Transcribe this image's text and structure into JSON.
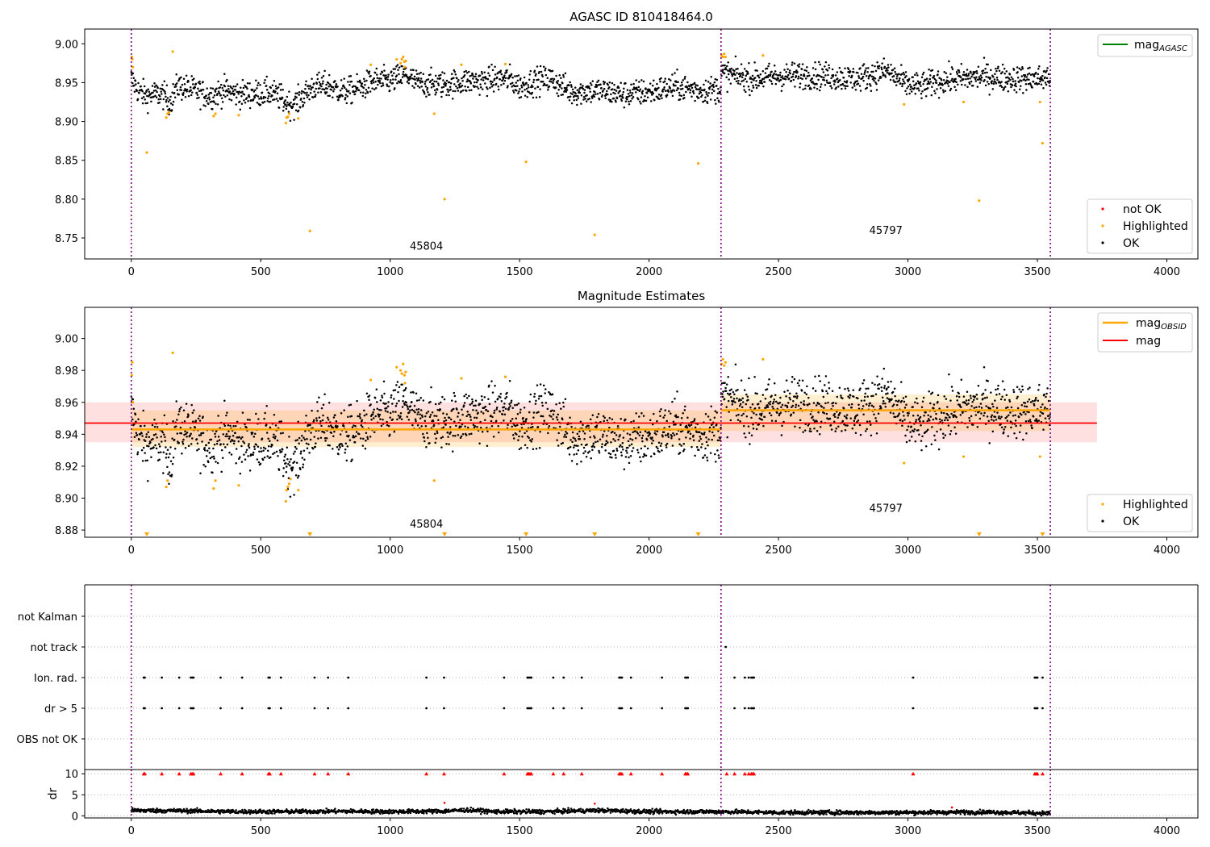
{
  "colors": {
    "ok": "#000000",
    "highlighted": "#ffa500",
    "not_ok": "#ff0000",
    "mag_agasc": "#008000",
    "mag_obsid": "#ffa500",
    "mag": "#ff0000",
    "obs_boundary": "#800080"
  },
  "chart_data": [
    {
      "type": "scatter",
      "title": "AGASC ID 810418464.0",
      "xlabel": "",
      "ylabel": "",
      "xlim": [
        -180,
        4120
      ],
      "ylim": [
        8.723,
        9.019
      ],
      "xticks": [
        0,
        500,
        1000,
        1500,
        2000,
        2500,
        3000,
        3500,
        4000
      ],
      "yticks": [
        8.75,
        8.8,
        8.85,
        8.9,
        8.95,
        9.0
      ],
      "ytick_labels": [
        "8.75",
        "8.80",
        "8.85",
        "8.90",
        "8.95",
        "9.00"
      ],
      "obs_boundaries": [
        0,
        2278,
        3550
      ],
      "obs_labels": [
        {
          "text": "45804",
          "x": 1140,
          "y": 8.735
        },
        {
          "text": "45797",
          "x": 2915,
          "y": 8.755
        }
      ],
      "legend_lines": [
        {
          "label": "mag",
          "sub": "AGASC",
          "color_key": "mag_agasc"
        }
      ],
      "legend_points": [
        {
          "label": "not OK",
          "color_key": "not_ok"
        },
        {
          "label": "Highlighted",
          "color_key": "highlighted"
        },
        {
          "label": "OK",
          "color_key": "ok"
        }
      ],
      "ok_trend": {
        "x": [
          0,
          30,
          60,
          90,
          120,
          150,
          180,
          220,
          260,
          300,
          360,
          420,
          480,
          540,
          580,
          600,
          620,
          640,
          660,
          700,
          760,
          820,
          880,
          940,
          1000,
          1060,
          1100,
          1160,
          1220,
          1300,
          1360,
          1420,
          1460,
          1500,
          1560,
          1620,
          1700,
          1800,
          1900,
          2000,
          2100,
          2200,
          2277,
          2278,
          2400,
          2500,
          2600,
          2700,
          2800,
          2860,
          2920,
          2960,
          2990,
          3050,
          3120,
          3200,
          3300,
          3400,
          3500,
          3550
        ],
        "y": [
          8.955,
          8.938,
          8.933,
          8.935,
          8.935,
          8.925,
          8.946,
          8.942,
          8.938,
          8.933,
          8.94,
          8.935,
          8.936,
          8.937,
          8.93,
          8.923,
          8.922,
          8.924,
          8.932,
          8.944,
          8.946,
          8.938,
          8.943,
          8.952,
          8.952,
          8.96,
          8.95,
          8.948,
          8.948,
          8.952,
          8.952,
          8.955,
          8.955,
          8.945,
          8.952,
          8.955,
          8.938,
          8.94,
          8.935,
          8.938,
          8.945,
          8.94,
          8.942,
          8.962,
          8.955,
          8.958,
          8.96,
          8.958,
          8.955,
          8.96,
          8.965,
          8.955,
          8.948,
          8.945,
          8.952,
          8.955,
          8.958,
          8.955,
          8.955,
          8.957
        ]
      },
      "highlighted": {
        "x": [
          2,
          4,
          6,
          60,
          135,
          140,
          145,
          160,
          318,
          325,
          415,
          597,
          600,
          605,
          610,
          645,
          690,
          925,
          1025,
          1040,
          1045,
          1050,
          1055,
          1057,
          1060,
          1170,
          1210,
          1275,
          1445,
          1525,
          1790,
          2190,
          2280,
          2285,
          2290,
          2295,
          2440,
          2985,
          3215,
          3275,
          3510,
          3520
        ],
        "y": [
          8.983,
          8.98,
          8.97,
          8.86,
          8.905,
          8.91,
          8.912,
          8.99,
          8.907,
          8.91,
          8.908,
          8.898,
          8.905,
          8.906,
          8.91,
          8.904,
          8.759,
          8.973,
          8.98,
          8.975,
          8.98,
          8.983,
          8.977,
          8.97,
          8.978,
          8.91,
          8.8,
          8.973,
          8.974,
          8.848,
          8.754,
          8.846,
          8.985,
          8.983,
          8.987,
          8.983,
          8.985,
          8.922,
          8.925,
          8.798,
          8.925,
          8.872
        ]
      }
    },
    {
      "type": "scatter",
      "title": "Magnitude Estimates",
      "xlabel": "",
      "ylabel": "",
      "xlim": [
        -180,
        4120
      ],
      "ylim": [
        8.8755,
        9.0195
      ],
      "xticks": [
        0,
        500,
        1000,
        1500,
        2000,
        2500,
        3000,
        3500,
        4000
      ],
      "yticks": [
        8.88,
        8.9,
        8.92,
        8.94,
        8.96,
        8.98,
        9.0
      ],
      "ytick_labels": [
        "8.88",
        "8.90",
        "8.92",
        "8.94",
        "8.96",
        "8.98",
        "9.00"
      ],
      "obs_boundaries": [
        0,
        2278,
        3550
      ],
      "obs_labels": [
        {
          "text": "45804",
          "x": 1140,
          "y": 8.8815
        },
        {
          "text": "45797",
          "x": 2915,
          "y": 8.8915
        }
      ],
      "legend_lines": [
        {
          "label": "mag",
          "sub": "OBSID",
          "color_key": "mag_obsid"
        },
        {
          "label": "mag",
          "sub": "",
          "color_key": "mag"
        }
      ],
      "legend_points": [
        {
          "label": "Highlighted",
          "color_key": "highlighted"
        },
        {
          "label": "OK",
          "color_key": "ok"
        }
      ],
      "mag_line": {
        "value": 8.947,
        "band": [
          8.935,
          8.96
        ],
        "x_range": [
          -180,
          3730
        ]
      },
      "obsid_segments": [
        {
          "x_range": [
            0,
            2278
          ],
          "value": 8.943,
          "band": [
            8.932,
            8.955
          ]
        },
        {
          "x_range": [
            2278,
            3550
          ],
          "value": 8.955,
          "band": [
            8.942,
            8.965
          ]
        }
      ],
      "below_range_markers_x": [
        60,
        690,
        1210,
        1525,
        1790,
        2190,
        3275,
        3520
      ],
      "ok_trend": {
        "x": [
          0,
          30,
          60,
          90,
          120,
          150,
          180,
          220,
          260,
          300,
          360,
          420,
          480,
          540,
          580,
          600,
          620,
          640,
          660,
          700,
          760,
          820,
          880,
          940,
          1000,
          1060,
          1100,
          1160,
          1220,
          1300,
          1360,
          1420,
          1460,
          1500,
          1560,
          1620,
          1700,
          1800,
          1900,
          2000,
          2100,
          2200,
          2277,
          2278,
          2400,
          2500,
          2600,
          2700,
          2800,
          2860,
          2920,
          2960,
          2990,
          3050,
          3120,
          3200,
          3300,
          3400,
          3500,
          3550
        ],
        "y": [
          8.955,
          8.938,
          8.933,
          8.935,
          8.935,
          8.925,
          8.946,
          8.942,
          8.938,
          8.933,
          8.94,
          8.935,
          8.936,
          8.937,
          8.93,
          8.923,
          8.922,
          8.924,
          8.932,
          8.944,
          8.946,
          8.938,
          8.943,
          8.952,
          8.952,
          8.96,
          8.95,
          8.948,
          8.948,
          8.952,
          8.952,
          8.955,
          8.955,
          8.945,
          8.952,
          8.955,
          8.938,
          8.94,
          8.935,
          8.938,
          8.945,
          8.94,
          8.942,
          8.962,
          8.955,
          8.958,
          8.96,
          8.958,
          8.955,
          8.96,
          8.965,
          8.955,
          8.948,
          8.945,
          8.952,
          8.955,
          8.958,
          8.955,
          8.955,
          8.957
        ]
      },
      "highlighted": {
        "x": [
          2,
          4,
          6,
          135,
          140,
          160,
          318,
          325,
          415,
          597,
          600,
          605,
          610,
          615,
          645,
          925,
          1025,
          1040,
          1045,
          1050,
          1055,
          1057,
          1060,
          1170,
          1275,
          1445,
          2280,
          2285,
          2290,
          2295,
          2440,
          2985,
          3215,
          3510
        ],
        "y": [
          8.977,
          8.985,
          8.96,
          8.907,
          8.911,
          8.991,
          8.906,
          8.911,
          8.908,
          8.898,
          8.905,
          8.907,
          8.909,
          8.912,
          8.905,
          8.974,
          8.982,
          8.98,
          8.978,
          8.984,
          8.977,
          8.972,
          8.979,
          8.911,
          8.975,
          8.976,
          8.984,
          8.987,
          8.983,
          8.985,
          8.987,
          8.922,
          8.926,
          8.926
        ]
      }
    },
    {
      "type": "scatter",
      "title": "",
      "xlabel": "",
      "ylabel": "",
      "xlim": [
        -180,
        4120
      ],
      "categories": [
        "not Kalman",
        "not track",
        "Ion. rad.",
        "dr > 5",
        "OBS not OK"
      ],
      "obs_boundaries": [
        0,
        2278,
        3550
      ],
      "flags": {
        "not track": [
          2296
        ],
        "Ion. rad.": [
          48,
          52,
          118,
          185,
          230,
          235,
          240,
          345,
          428,
          530,
          535,
          578,
          708,
          760,
          838,
          1140,
          1208,
          1440,
          1530,
          1535,
          1540,
          1545,
          1630,
          1670,
          1740,
          1885,
          1890,
          1895,
          1930,
          2050,
          2140,
          2145,
          2150,
          2330,
          2370,
          2385,
          2395,
          2400,
          2405,
          3020,
          3490,
          3495,
          3500,
          3520
        ],
        "dr > 5": [
          48,
          52,
          118,
          185,
          230,
          235,
          240,
          345,
          428,
          530,
          535,
          578,
          708,
          760,
          838,
          1140,
          1208,
          1440,
          1530,
          1535,
          1540,
          1545,
          1630,
          1670,
          1740,
          1885,
          1890,
          1895,
          1930,
          2050,
          2140,
          2145,
          2150,
          2330,
          2370,
          2385,
          2395,
          2400,
          2405,
          3020,
          3490,
          3495,
          3500,
          3520
        ]
      }
    },
    {
      "type": "scatter",
      "title": "",
      "xlabel": "",
      "ylabel": "dr",
      "xlim": [
        -180,
        4120
      ],
      "ylim": [
        -0.5,
        11
      ],
      "xticks": [
        0,
        500,
        1000,
        1500,
        2000,
        2500,
        3000,
        3500,
        4000
      ],
      "yticks": [
        0,
        5,
        10
      ],
      "ytick_labels": [
        "0",
        "5",
        "10"
      ],
      "obs_boundaries": [
        0,
        2278,
        3550
      ],
      "clipped_at": 10,
      "clipped_x": [
        48,
        52,
        118,
        185,
        230,
        235,
        240,
        345,
        428,
        530,
        535,
        578,
        708,
        760,
        838,
        1140,
        1208,
        1440,
        1530,
        1535,
        1540,
        1545,
        1630,
        1670,
        1740,
        1885,
        1890,
        1895,
        1930,
        2050,
        2140,
        2145,
        2150,
        2300,
        2330,
        2370,
        2385,
        2395,
        2400,
        2405,
        3020,
        3490,
        3495,
        3500,
        3520
      ],
      "outlier_points": {
        "x": [
          1210,
          1790,
          3170
        ],
        "y": [
          3.1,
          2.9,
          2.0
        ]
      },
      "ok_trend": {
        "x": [
          0,
          200,
          400,
          600,
          800,
          1000,
          1200,
          1300,
          1400,
          1600,
          1800,
          2000,
          2278,
          2500,
          2800,
          3000,
          3300,
          3550
        ],
        "y": [
          1.3,
          1.2,
          1.0,
          1.0,
          1.1,
          1.0,
          1.1,
          1.4,
          1.0,
          1.0,
          1.3,
          1.0,
          1.0,
          0.8,
          0.8,
          0.8,
          0.9,
          0.6
        ]
      }
    }
  ]
}
